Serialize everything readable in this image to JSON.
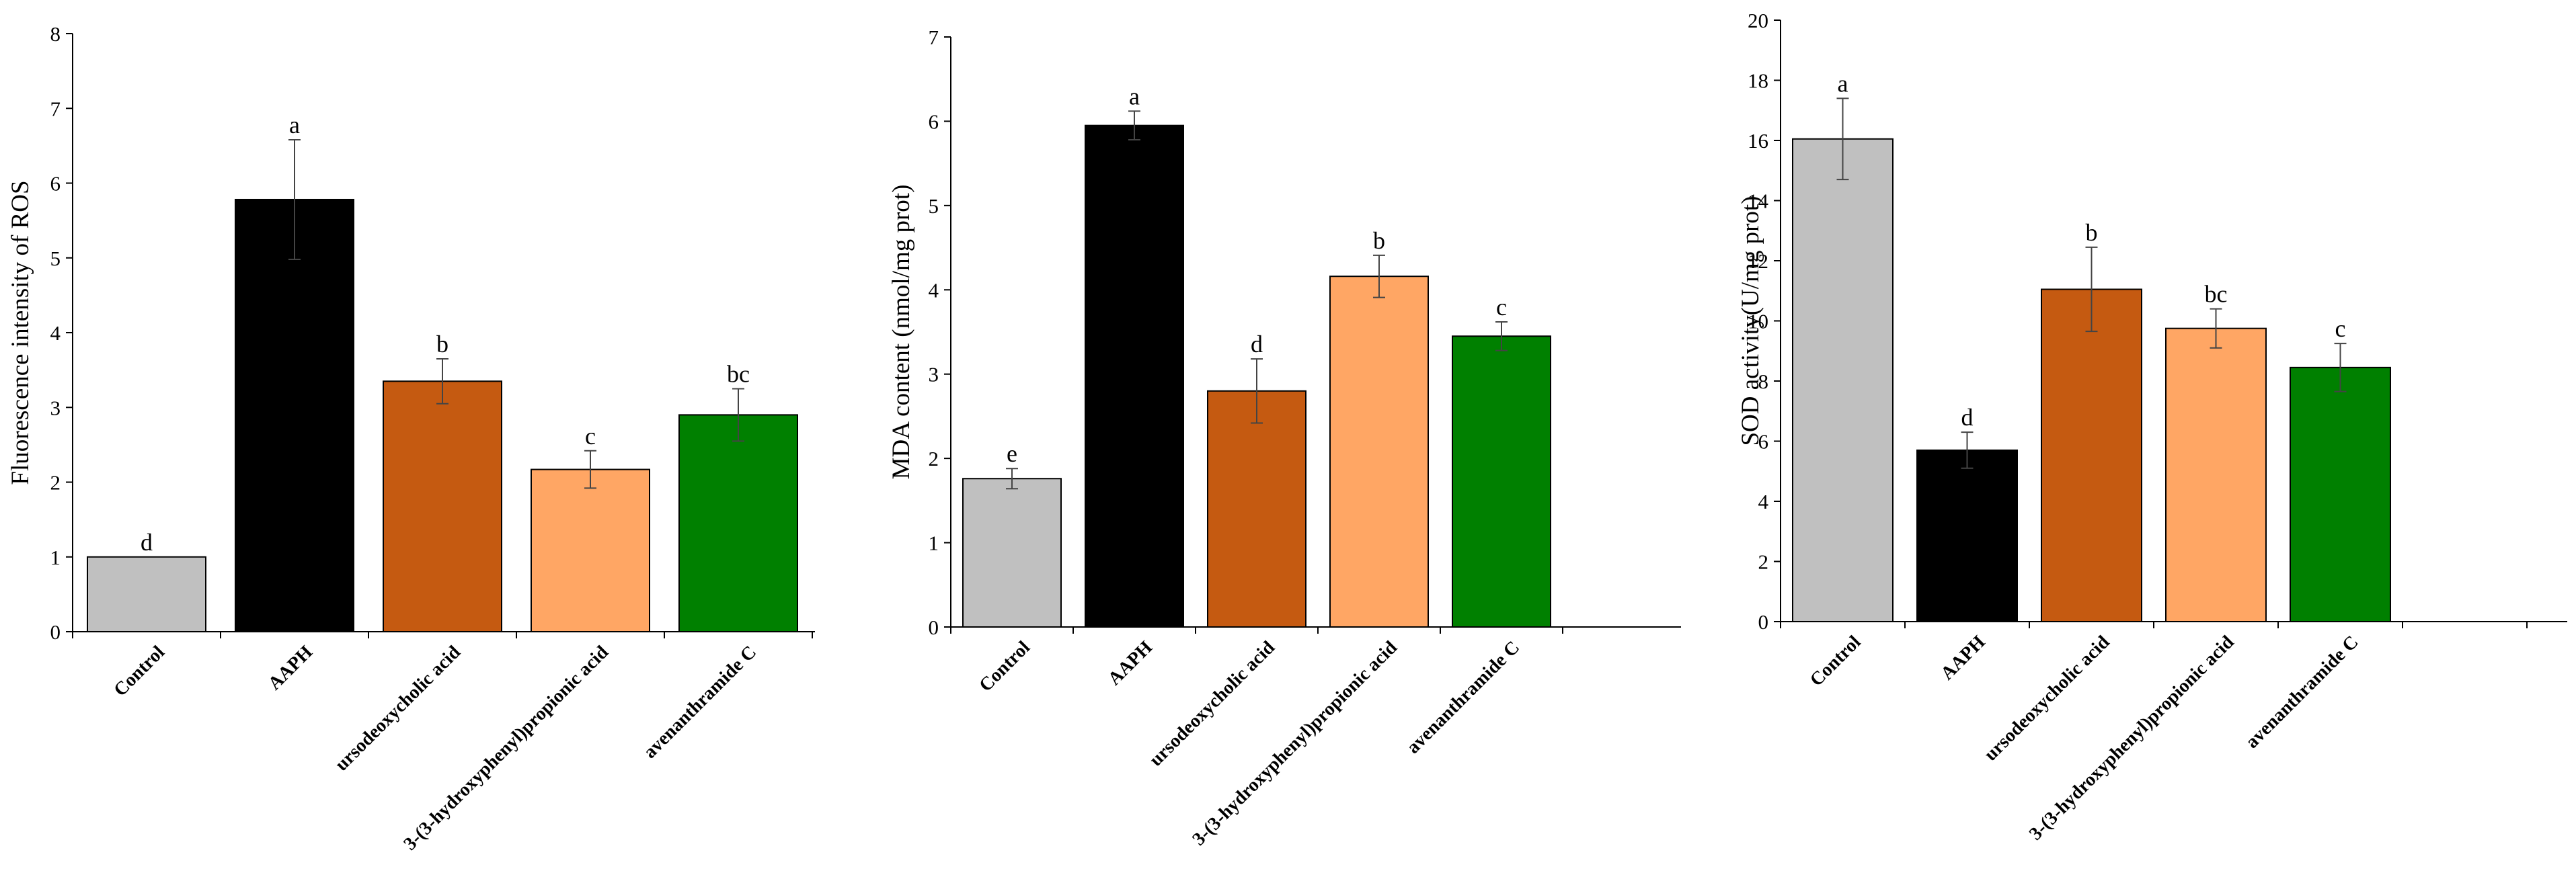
{
  "chart_data": [
    {
      "type": "bar",
      "title": "",
      "xlabel": "",
      "ylabel": "Fluorescence intensity of ROS",
      "ylim": [
        0,
        8
      ],
      "yticks": [
        0,
        1,
        2,
        3,
        4,
        5,
        6,
        7,
        8
      ],
      "categories": [
        "Control",
        "AAPH",
        "ursodeoxycholic acid",
        "3-(3-hydroxyphenyl)propionic acid",
        "avenanthramide C"
      ],
      "values": [
        1.0,
        5.78,
        3.35,
        2.17,
        2.9
      ],
      "errors": [
        0,
        0.8,
        0.3,
        0.25,
        0.35
      ],
      "significance": [
        "d",
        "a",
        "b",
        "c",
        "bc"
      ],
      "colors": [
        "#c0c0c0",
        "#000000",
        "#c55a11",
        "#ffa664",
        "#008000"
      ],
      "empty_trailing_slot": false
    },
    {
      "type": "bar",
      "title": "",
      "xlabel": "",
      "ylabel": "MDA content (nmol/mg prot)",
      "ylim": [
        0,
        7
      ],
      "yticks": [
        0,
        1,
        2,
        3,
        4,
        5,
        6,
        7
      ],
      "categories": [
        "Control",
        "AAPH",
        "ursodeoxycholic acid",
        "3-(3-hydroxyphenyl)propionic acid",
        "avenanthramide C"
      ],
      "values": [
        1.76,
        5.95,
        2.8,
        4.16,
        3.45
      ],
      "errors": [
        0.12,
        0.17,
        0.38,
        0.25,
        0.17
      ],
      "significance": [
        "e",
        "a",
        "d",
        "b",
        "c"
      ],
      "colors": [
        "#c0c0c0",
        "#000000",
        "#c55a11",
        "#ffa664",
        "#008000"
      ],
      "empty_trailing_slot": true
    },
    {
      "type": "bar",
      "title": "",
      "xlabel": "",
      "ylabel": "SOD activity(U/mg prot)",
      "ylim": [
        0,
        20
      ],
      "yticks": [
        0,
        2,
        4,
        6,
        8,
        10,
        12,
        14,
        16,
        18,
        20
      ],
      "categories": [
        "Control",
        "AAPH",
        "ursodeoxycholic acid",
        "3-(3-hydroxyphenyl)propionic acid",
        "avenanthramide C"
      ],
      "values": [
        16.05,
        5.7,
        11.05,
        9.75,
        8.45
      ],
      "errors": [
        1.35,
        0.6,
        1.4,
        0.65,
        0.8
      ],
      "significance": [
        "a",
        "d",
        "b",
        "bc",
        "c"
      ],
      "colors": [
        "#c0c0c0",
        "#000000",
        "#c55a11",
        "#ffa664",
        "#008000"
      ],
      "empty_trailing_slot": true
    }
  ]
}
